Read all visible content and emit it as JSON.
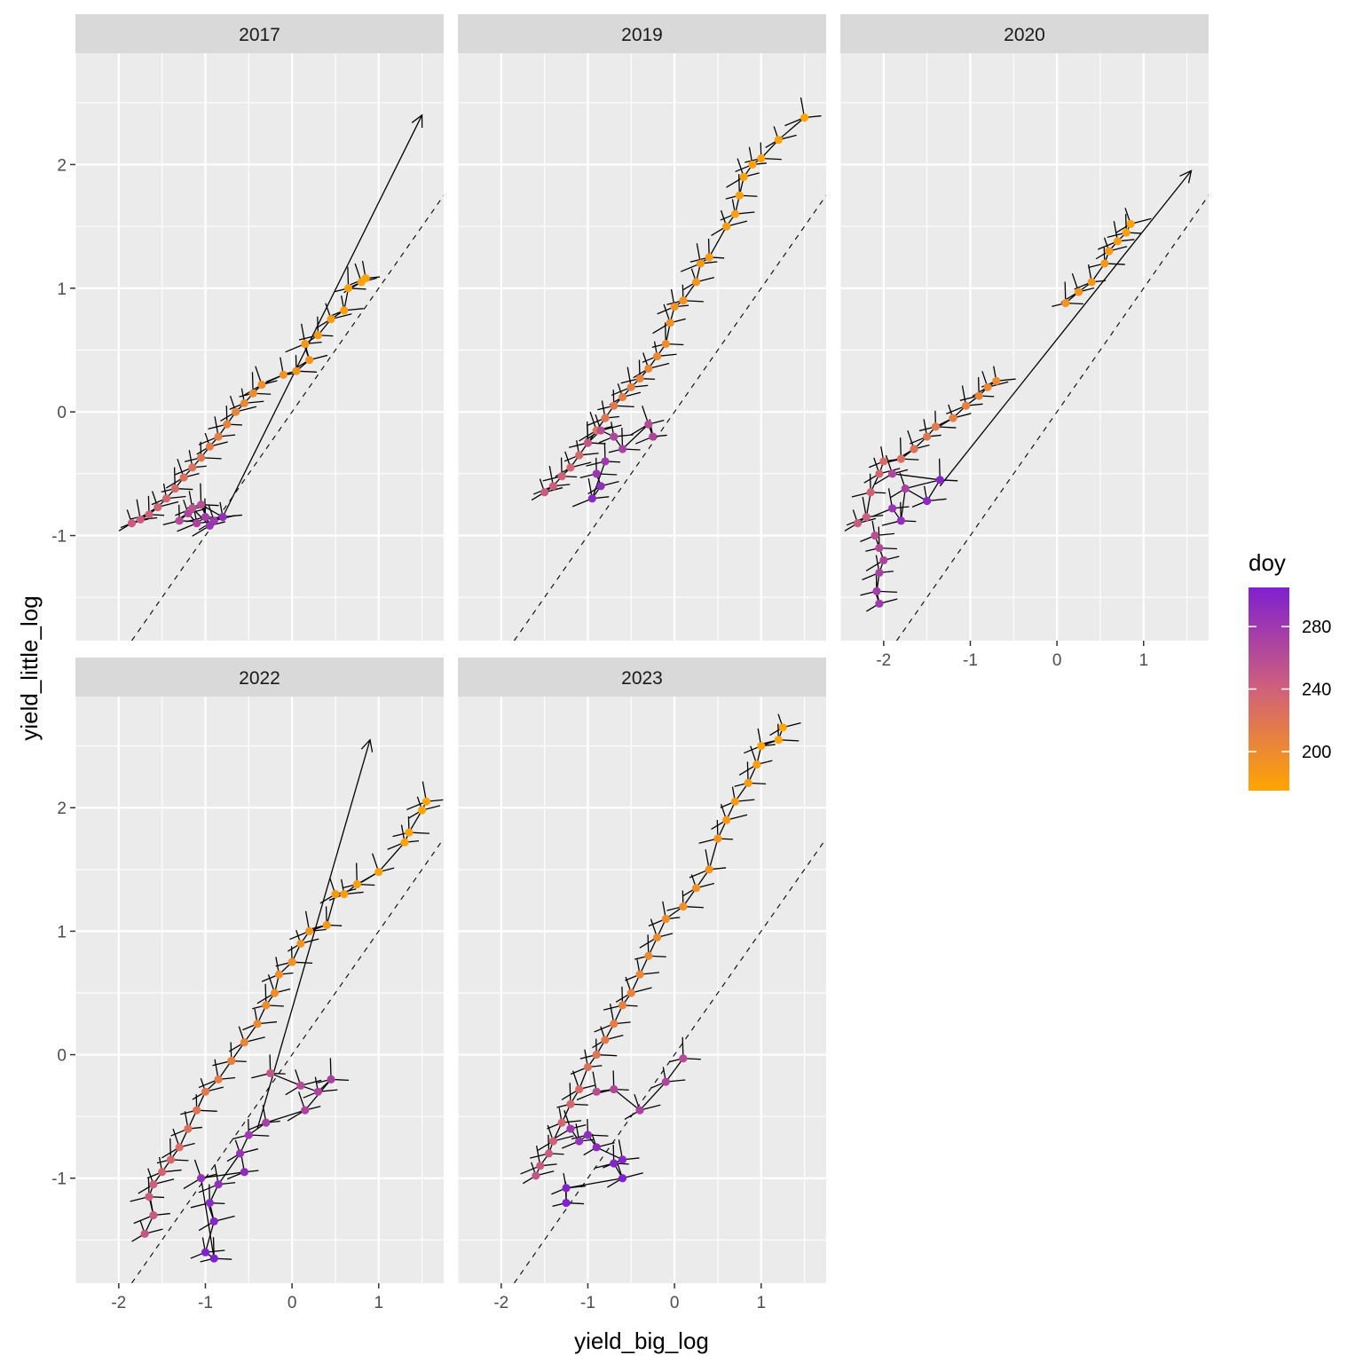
{
  "chart_data": {
    "type": "scatter",
    "subtype": "faceted scatter with trajectory arrows",
    "xlabel": "yield_big_log",
    "ylabel": "yield_little_log",
    "xlim": [
      -2.5,
      1.75
    ],
    "ylim": [
      -1.85,
      2.9
    ],
    "x_ticks": [
      -2,
      -1,
      0,
      1
    ],
    "y_ticks": [
      -1,
      0,
      1,
      2
    ],
    "grid": true,
    "reference_line": {
      "type": "dashed",
      "slope": 1,
      "intercept": 0
    },
    "legend": {
      "title": "doy",
      "type": "colorbar",
      "placement": "right",
      "range": [
        175,
        305
      ],
      "ticks": [
        200,
        240,
        280
      ],
      "low_color": "#FFA500",
      "mid_color": "#D0607A",
      "high_color": "#8020D0"
    },
    "facets": [
      {
        "label": "2017",
        "arrow": {
          "from": [
            -0.8,
            -0.85
          ],
          "to": [
            1.5,
            2.4
          ]
        },
        "points": [
          [
            -1.85,
            -0.9,
            245
          ],
          [
            -1.75,
            -0.87,
            243
          ],
          [
            -1.65,
            -0.83,
            240
          ],
          [
            -1.55,
            -0.77,
            237
          ],
          [
            -1.45,
            -0.7,
            234
          ],
          [
            -1.35,
            -0.62,
            230
          ],
          [
            -1.25,
            -0.53,
            226
          ],
          [
            -1.15,
            -0.45,
            222
          ],
          [
            -1.05,
            -0.37,
            218
          ],
          [
            -0.95,
            -0.28,
            214
          ],
          [
            -0.85,
            -0.2,
            211
          ],
          [
            -0.75,
            -0.1,
            208
          ],
          [
            -0.65,
            0.0,
            205
          ],
          [
            -0.55,
            0.07,
            202
          ],
          [
            -0.45,
            0.15,
            199
          ],
          [
            -0.35,
            0.22,
            196
          ],
          [
            -0.1,
            0.3,
            193
          ],
          [
            0.05,
            0.33,
            191
          ],
          [
            0.2,
            0.42,
            189
          ],
          [
            0.15,
            0.55,
            187
          ],
          [
            0.3,
            0.62,
            185
          ],
          [
            0.45,
            0.75,
            183
          ],
          [
            0.6,
            0.82,
            181
          ],
          [
            0.65,
            1.0,
            179
          ],
          [
            0.8,
            1.05,
            178
          ],
          [
            0.85,
            1.08,
            177
          ],
          [
            -1.3,
            -0.88,
            262
          ],
          [
            -1.2,
            -0.82,
            266
          ],
          [
            -1.1,
            -0.9,
            270
          ],
          [
            -1.0,
            -0.85,
            275
          ],
          [
            -0.9,
            -0.88,
            282
          ],
          [
            -0.8,
            -0.85,
            290
          ],
          [
            -1.05,
            -0.75,
            258
          ],
          [
            -0.95,
            -0.92,
            285
          ],
          [
            -1.15,
            -0.78,
            255
          ]
        ]
      },
      {
        "label": "2019",
        "arrow": null,
        "points": [
          [
            -1.5,
            -0.65,
            245
          ],
          [
            -1.4,
            -0.6,
            242
          ],
          [
            -1.3,
            -0.52,
            238
          ],
          [
            -1.2,
            -0.45,
            234
          ],
          [
            -1.1,
            -0.35,
            230
          ],
          [
            -1.0,
            -0.25,
            226
          ],
          [
            -0.9,
            -0.15,
            222
          ],
          [
            -0.8,
            -0.05,
            219
          ],
          [
            -0.7,
            0.05,
            216
          ],
          [
            -0.6,
            0.12,
            213
          ],
          [
            -0.5,
            0.2,
            210
          ],
          [
            -0.4,
            0.27,
            207
          ],
          [
            -0.3,
            0.35,
            204
          ],
          [
            -0.2,
            0.45,
            201
          ],
          [
            -0.1,
            0.55,
            198
          ],
          [
            -0.05,
            0.72,
            195
          ],
          [
            0.0,
            0.85,
            193
          ],
          [
            0.1,
            0.9,
            191
          ],
          [
            0.25,
            1.05,
            189
          ],
          [
            0.3,
            1.2,
            187
          ],
          [
            0.4,
            1.25,
            185
          ],
          [
            0.6,
            1.5,
            183
          ],
          [
            0.7,
            1.6,
            181
          ],
          [
            0.75,
            1.75,
            180
          ],
          [
            0.8,
            1.9,
            179
          ],
          [
            0.9,
            2.0,
            178
          ],
          [
            1.0,
            2.05,
            177
          ],
          [
            1.2,
            2.2,
            176
          ],
          [
            1.5,
            2.38,
            175
          ],
          [
            -1.0,
            -0.25,
            250
          ],
          [
            -0.85,
            -0.15,
            258
          ],
          [
            -0.7,
            -0.2,
            265
          ],
          [
            -0.6,
            -0.3,
            272
          ],
          [
            -0.3,
            -0.1,
            262
          ],
          [
            -0.25,
            -0.2,
            268
          ],
          [
            -0.9,
            -0.5,
            285
          ],
          [
            -0.85,
            -0.6,
            292
          ],
          [
            -0.95,
            -0.7,
            298
          ],
          [
            -0.8,
            -0.4,
            280
          ]
        ]
      },
      {
        "label": "2020",
        "arrow": {
          "from": [
            -1.35,
            -0.6
          ],
          "to": [
            1.55,
            1.95
          ]
        },
        "points": [
          [
            -2.3,
            -0.9,
            245
          ],
          [
            -2.2,
            -0.85,
            242
          ],
          [
            -2.15,
            -0.65,
            238
          ],
          [
            -2.05,
            -0.5,
            234
          ],
          [
            -2.0,
            -0.4,
            230
          ],
          [
            -1.8,
            -0.38,
            226
          ],
          [
            -1.65,
            -0.3,
            222
          ],
          [
            -1.5,
            -0.2,
            218
          ],
          [
            -1.4,
            -0.12,
            214
          ],
          [
            -1.2,
            -0.05,
            211
          ],
          [
            -1.05,
            0.05,
            208
          ],
          [
            -0.9,
            0.13,
            205
          ],
          [
            -0.8,
            0.2,
            202
          ],
          [
            -0.7,
            0.25,
            200
          ],
          [
            0.1,
            0.88,
            192
          ],
          [
            0.25,
            0.97,
            190
          ],
          [
            0.4,
            1.05,
            188
          ],
          [
            0.55,
            1.2,
            186
          ],
          [
            0.6,
            1.3,
            184
          ],
          [
            0.7,
            1.38,
            182
          ],
          [
            0.8,
            1.45,
            180
          ],
          [
            0.85,
            1.52,
            178
          ],
          [
            -2.1,
            -1.0,
            258
          ],
          [
            -2.05,
            -1.1,
            262
          ],
          [
            -2.0,
            -1.2,
            268
          ],
          [
            -2.05,
            -1.3,
            272
          ],
          [
            -2.08,
            -1.45,
            276
          ],
          [
            -2.05,
            -1.55,
            280
          ],
          [
            -1.9,
            -0.78,
            285
          ],
          [
            -1.8,
            -0.88,
            290
          ],
          [
            -1.75,
            -0.62,
            270
          ],
          [
            -1.5,
            -0.72,
            295
          ],
          [
            -1.35,
            -0.55,
            300
          ],
          [
            -1.9,
            -0.5,
            265
          ]
        ]
      },
      {
        "label": "2022",
        "arrow": {
          "from": [
            -0.4,
            -0.6
          ],
          "to": [
            0.9,
            2.55
          ]
        },
        "points": [
          [
            -1.7,
            -1.45,
            250
          ],
          [
            -1.6,
            -1.3,
            247
          ],
          [
            -1.65,
            -1.15,
            244
          ],
          [
            -1.6,
            -1.05,
            240
          ],
          [
            -1.5,
            -0.95,
            236
          ],
          [
            -1.4,
            -0.85,
            232
          ],
          [
            -1.3,
            -0.75,
            228
          ],
          [
            -1.2,
            -0.6,
            224
          ],
          [
            -1.1,
            -0.45,
            220
          ],
          [
            -1.0,
            -0.3,
            216
          ],
          [
            -0.85,
            -0.2,
            212
          ],
          [
            -0.7,
            -0.05,
            208
          ],
          [
            -0.55,
            0.1,
            205
          ],
          [
            -0.4,
            0.25,
            202
          ],
          [
            -0.3,
            0.4,
            199
          ],
          [
            -0.2,
            0.5,
            197
          ],
          [
            -0.15,
            0.65,
            195
          ],
          [
            0.0,
            0.75,
            193
          ],
          [
            0.1,
            0.9,
            191
          ],
          [
            0.2,
            1.0,
            189
          ],
          [
            0.4,
            1.05,
            187
          ],
          [
            0.5,
            1.3,
            185
          ],
          [
            0.6,
            1.3,
            183
          ],
          [
            0.75,
            1.38,
            181
          ],
          [
            1.0,
            1.48,
            179
          ],
          [
            1.3,
            1.72,
            177
          ],
          [
            1.35,
            1.8,
            176
          ],
          [
            1.5,
            1.98,
            175
          ],
          [
            1.55,
            2.05,
            175
          ],
          [
            -0.25,
            -0.15,
            250
          ],
          [
            0.1,
            -0.25,
            262
          ],
          [
            0.3,
            -0.3,
            268
          ],
          [
            0.45,
            -0.2,
            272
          ],
          [
            0.15,
            -0.45,
            270
          ],
          [
            -0.3,
            -0.55,
            275
          ],
          [
            -0.5,
            -0.65,
            280
          ],
          [
            -0.6,
            -0.8,
            285
          ],
          [
            -0.85,
            -1.05,
            290
          ],
          [
            -0.95,
            -1.2,
            295
          ],
          [
            -0.9,
            -1.35,
            300
          ],
          [
            -1.0,
            -1.6,
            303
          ],
          [
            -0.9,
            -1.65,
            305
          ],
          [
            -1.05,
            -1.0,
            288
          ],
          [
            -0.55,
            -0.95,
            292
          ]
        ]
      },
      {
        "label": "2023",
        "arrow": null,
        "points": [
          [
            -1.6,
            -0.98,
            250
          ],
          [
            -1.55,
            -0.9,
            247
          ],
          [
            -1.45,
            -0.8,
            244
          ],
          [
            -1.4,
            -0.7,
            240
          ],
          [
            -1.3,
            -0.55,
            236
          ],
          [
            -1.2,
            -0.4,
            232
          ],
          [
            -1.1,
            -0.28,
            228
          ],
          [
            -1.0,
            -0.1,
            224
          ],
          [
            -0.9,
            0.0,
            220
          ],
          [
            -0.8,
            0.12,
            216
          ],
          [
            -0.7,
            0.25,
            212
          ],
          [
            -0.6,
            0.4,
            209
          ],
          [
            -0.5,
            0.5,
            206
          ],
          [
            -0.4,
            0.65,
            203
          ],
          [
            -0.3,
            0.8,
            201
          ],
          [
            -0.2,
            0.95,
            199
          ],
          [
            -0.1,
            1.1,
            197
          ],
          [
            0.1,
            1.2,
            195
          ],
          [
            0.25,
            1.35,
            193
          ],
          [
            0.4,
            1.5,
            191
          ],
          [
            0.5,
            1.75,
            189
          ],
          [
            0.6,
            1.9,
            187
          ],
          [
            0.7,
            2.05,
            185
          ],
          [
            0.85,
            2.2,
            183
          ],
          [
            0.95,
            2.35,
            181
          ],
          [
            1.0,
            2.5,
            179
          ],
          [
            1.2,
            2.55,
            177
          ],
          [
            1.25,
            2.65,
            175
          ],
          [
            -0.9,
            -0.3,
            260
          ],
          [
            -0.7,
            -0.28,
            265
          ],
          [
            -0.4,
            -0.45,
            270
          ],
          [
            -0.1,
            -0.22,
            268
          ],
          [
            0.1,
            -0.03,
            262
          ],
          [
            -1.2,
            -0.6,
            280
          ],
          [
            -1.1,
            -0.7,
            288
          ],
          [
            -1.0,
            -0.65,
            292
          ],
          [
            -0.9,
            -0.75,
            295
          ],
          [
            -0.6,
            -0.85,
            300
          ],
          [
            -0.7,
            -0.88,
            302
          ],
          [
            -0.6,
            -1.0,
            305
          ],
          [
            -1.25,
            -1.08,
            303
          ],
          [
            -1.25,
            -1.2,
            304
          ]
        ]
      }
    ]
  }
}
